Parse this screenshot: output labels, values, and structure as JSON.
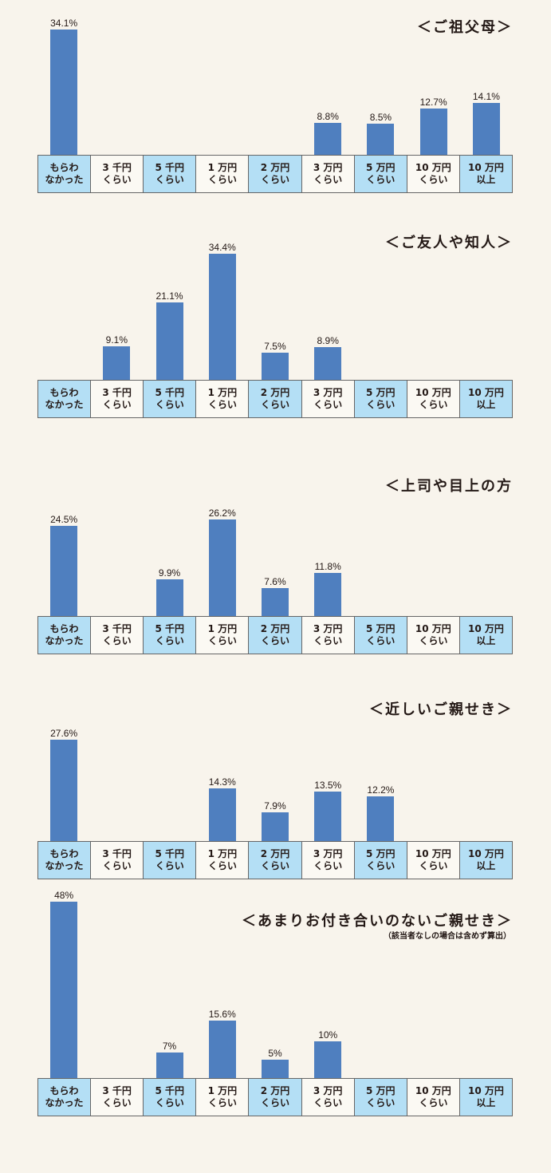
{
  "chart_data": [
    {
      "type": "bar",
      "title": "＜ご祖父母＞",
      "categories": [
        "もらわ\nなかった",
        "3 千円\nくらい",
        "5 千円\nくらい",
        "1 万円\nくらい",
        "2 万円\nくらい",
        "3 万円\nくらい",
        "5 万円\nくらい",
        "10 万円\nくらい",
        "10 万円\n以上"
      ],
      "values": [
        34.1,
        null,
        null,
        null,
        null,
        8.8,
        8.5,
        12.7,
        14.1
      ],
      "value_labels": [
        "34.1%",
        "",
        "",
        "",
        "",
        "8.8%",
        "8.5%",
        "12.7%",
        "14.1%"
      ],
      "ylim": [
        0,
        50
      ]
    },
    {
      "type": "bar",
      "title": "＜ご友人や知人＞",
      "categories": [
        "もらわ\nなかった",
        "3 千円\nくらい",
        "5 千円\nくらい",
        "1 万円\nくらい",
        "2 万円\nくらい",
        "3 万円\nくらい",
        "5 万円\nくらい",
        "10 万円\nくらい",
        "10 万円\n以上"
      ],
      "values": [
        null,
        9.1,
        21.1,
        34.4,
        7.5,
        8.9,
        null,
        null,
        null
      ],
      "value_labels": [
        "",
        "9.1%",
        "21.1%",
        "34.4%",
        "7.5%",
        "8.9%",
        "",
        "",
        ""
      ],
      "ylim": [
        0,
        50
      ]
    },
    {
      "type": "bar",
      "title": "＜上司や目上の方",
      "categories": [
        "もらわ\nなかった",
        "3 千円\nくらい",
        "5 千円\nくらい",
        "1 万円\nくらい",
        "2 万円\nくらい",
        "3 万円\nくらい",
        "5 万円\nくらい",
        "10 万円\nくらい",
        "10 万円\n以上"
      ],
      "values": [
        24.5,
        null,
        9.9,
        26.2,
        7.6,
        11.8,
        null,
        null,
        null
      ],
      "value_labels": [
        "24.5%",
        "",
        "9.9%",
        "26.2%",
        "7.6%",
        "11.8%",
        "",
        "",
        ""
      ],
      "ylim": [
        0,
        50
      ]
    },
    {
      "type": "bar",
      "title": "＜近しいご親せき＞",
      "categories": [
        "もらわ\nなかった",
        "3 千円\nくらい",
        "5 千円\nくらい",
        "1 万円\nくらい",
        "2 万円\nくらい",
        "3 万円\nくらい",
        "5 万円\nくらい",
        "10 万円\nくらい",
        "10 万円\n以上"
      ],
      "values": [
        27.6,
        null,
        null,
        14.3,
        7.9,
        13.5,
        12.2,
        null,
        null
      ],
      "value_labels": [
        "27.6%",
        "",
        "",
        "14.3%",
        "7.9%",
        "13.5%",
        "12.2%",
        "",
        ""
      ],
      "ylim": [
        0,
        50
      ]
    },
    {
      "type": "bar",
      "title": "＜あまりお付き合いのないご親せき＞",
      "note": "（該当者なしの場合は含めず算出）",
      "categories": [
        "もらわ\nなかった",
        "3 千円\nくらい",
        "5 千円\nくらい",
        "1 万円\nくらい",
        "2 万円\nくらい",
        "3 万円\nくらい",
        "5 万円\nくらい",
        "10 万円\nくらい",
        "10 万円\n以上"
      ],
      "values": [
        48,
        null,
        7,
        15.6,
        5,
        10,
        null,
        null,
        null
      ],
      "value_labels": [
        "48%",
        "",
        "7%",
        "15.6%",
        "5%",
        "10%",
        "",
        "",
        ""
      ],
      "ylim": [
        0,
        50
      ]
    }
  ],
  "colors": {
    "bar": "#4f7fbf",
    "category_highlight": "#b4dff5",
    "category_plain": "#fbf9f3",
    "background": "#f8f4ec"
  }
}
